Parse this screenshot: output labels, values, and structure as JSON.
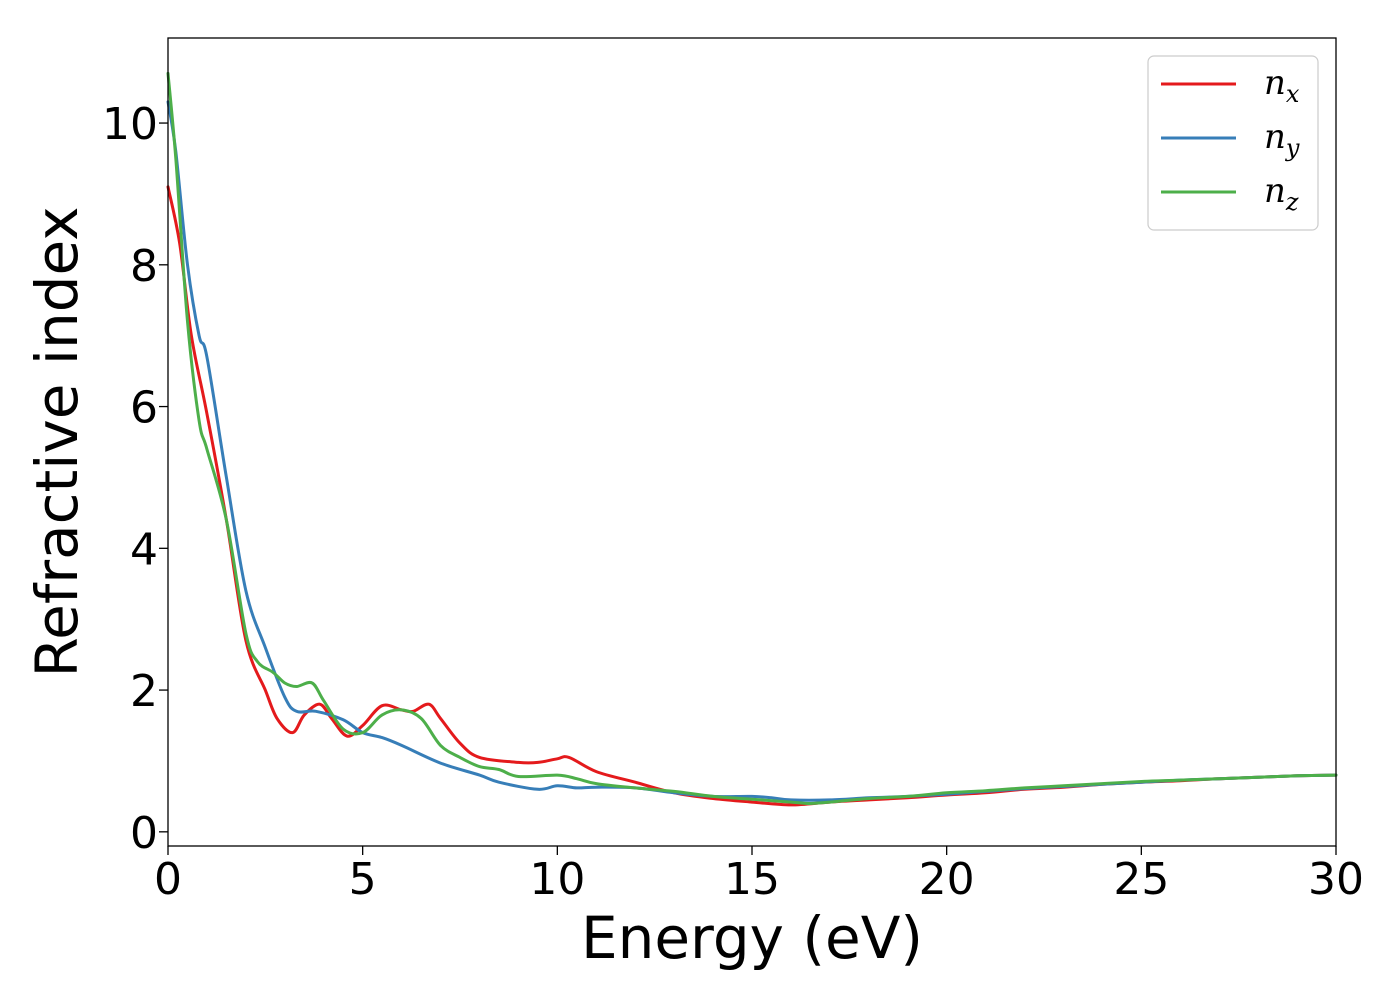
{
  "chart_data": {
    "type": "line",
    "title": "",
    "xlabel": "Energy (eV)",
    "ylabel": "Refractive index",
    "xlim": [
      0,
      30
    ],
    "ylim": [
      -0.2,
      11.2
    ],
    "xticks": [
      0,
      5,
      10,
      15,
      20,
      25,
      30
    ],
    "xtick_labels": [
      "0",
      "5",
      "10",
      "15",
      "20",
      "25",
      "30"
    ],
    "yticks": [
      0,
      2,
      4,
      6,
      8,
      10
    ],
    "ytick_labels": [
      "0",
      "2",
      "4",
      "6",
      "8",
      "10"
    ],
    "grid": false,
    "legend_position": "top-right",
    "series": [
      {
        "name": "n",
        "subscript": "x",
        "color": "#e41a1c",
        "x": [
          0,
          0.3,
          0.6,
          1.0,
          1.5,
          2.0,
          2.5,
          2.8,
          3.2,
          3.5,
          3.9,
          4.2,
          4.6,
          5.0,
          5.5,
          6.0,
          6.3,
          6.7,
          7.0,
          7.5,
          8.0,
          9.0,
          9.5,
          10.0,
          10.3,
          11.0,
          12.0,
          13.0,
          14.0,
          15.0,
          16.0,
          17.0,
          18.0,
          19.0,
          20.0,
          21.0,
          22.0,
          23.0,
          24.0,
          25.0,
          26.0,
          27.0,
          28.0,
          29.0,
          30.0
        ],
        "y": [
          9.1,
          8.3,
          7.0,
          5.9,
          4.4,
          2.7,
          2.0,
          1.6,
          1.4,
          1.65,
          1.8,
          1.6,
          1.35,
          1.5,
          1.78,
          1.72,
          1.7,
          1.8,
          1.6,
          1.25,
          1.05,
          0.98,
          0.98,
          1.03,
          1.05,
          0.85,
          0.7,
          0.55,
          0.47,
          0.42,
          0.38,
          0.42,
          0.45,
          0.48,
          0.52,
          0.55,
          0.6,
          0.63,
          0.67,
          0.7,
          0.72,
          0.75,
          0.77,
          0.79,
          0.8
        ]
      },
      {
        "name": "n",
        "subscript": "y",
        "color": "#377eb8",
        "x": [
          0,
          0.2,
          0.5,
          0.8,
          1.0,
          1.5,
          2.0,
          2.5,
          3.0,
          3.3,
          3.8,
          4.5,
          5.0,
          5.5,
          6.0,
          7.0,
          8.0,
          8.5,
          9.5,
          10.0,
          10.5,
          11.0,
          12.0,
          13.0,
          14.0,
          15.0,
          15.5,
          16.0,
          17.0,
          18.0,
          19.0,
          20.0,
          21.0,
          22.0,
          23.0,
          24.0,
          25.0,
          26.0,
          27.0,
          28.0,
          29.0,
          30.0
        ],
        "y": [
          10.3,
          9.6,
          8.0,
          7.0,
          6.7,
          5.0,
          3.4,
          2.6,
          1.9,
          1.7,
          1.7,
          1.58,
          1.4,
          1.33,
          1.22,
          0.97,
          0.8,
          0.7,
          0.6,
          0.65,
          0.62,
          0.63,
          0.62,
          0.55,
          0.5,
          0.5,
          0.48,
          0.45,
          0.45,
          0.48,
          0.5,
          0.53,
          0.57,
          0.61,
          0.64,
          0.67,
          0.7,
          0.73,
          0.75,
          0.77,
          0.79,
          0.8
        ]
      },
      {
        "name": "n",
        "subscript": "z",
        "color": "#4daf4a",
        "x": [
          0,
          0.2,
          0.5,
          0.8,
          1.0,
          1.5,
          2.0,
          2.3,
          2.7,
          3.0,
          3.3,
          3.7,
          4.0,
          4.5,
          5.0,
          5.5,
          6.0,
          6.5,
          7.0,
          7.5,
          8.0,
          8.5,
          9.0,
          10.0,
          10.5,
          11.0,
          12.0,
          13.0,
          14.0,
          15.0,
          16.0,
          16.5,
          17.0,
          18.0,
          19.0,
          20.0,
          21.0,
          22.0,
          23.0,
          24.0,
          25.0,
          26.0,
          27.0,
          28.0,
          29.0,
          30.0
        ],
        "y": [
          10.7,
          9.5,
          7.2,
          5.8,
          5.4,
          4.4,
          2.8,
          2.4,
          2.25,
          2.1,
          2.05,
          2.1,
          1.85,
          1.45,
          1.4,
          1.65,
          1.72,
          1.6,
          1.22,
          1.05,
          0.92,
          0.88,
          0.78,
          0.8,
          0.75,
          0.68,
          0.62,
          0.57,
          0.5,
          0.46,
          0.42,
          0.4,
          0.42,
          0.47,
          0.5,
          0.55,
          0.58,
          0.62,
          0.65,
          0.68,
          0.71,
          0.73,
          0.75,
          0.77,
          0.79,
          0.8
        ]
      }
    ]
  }
}
